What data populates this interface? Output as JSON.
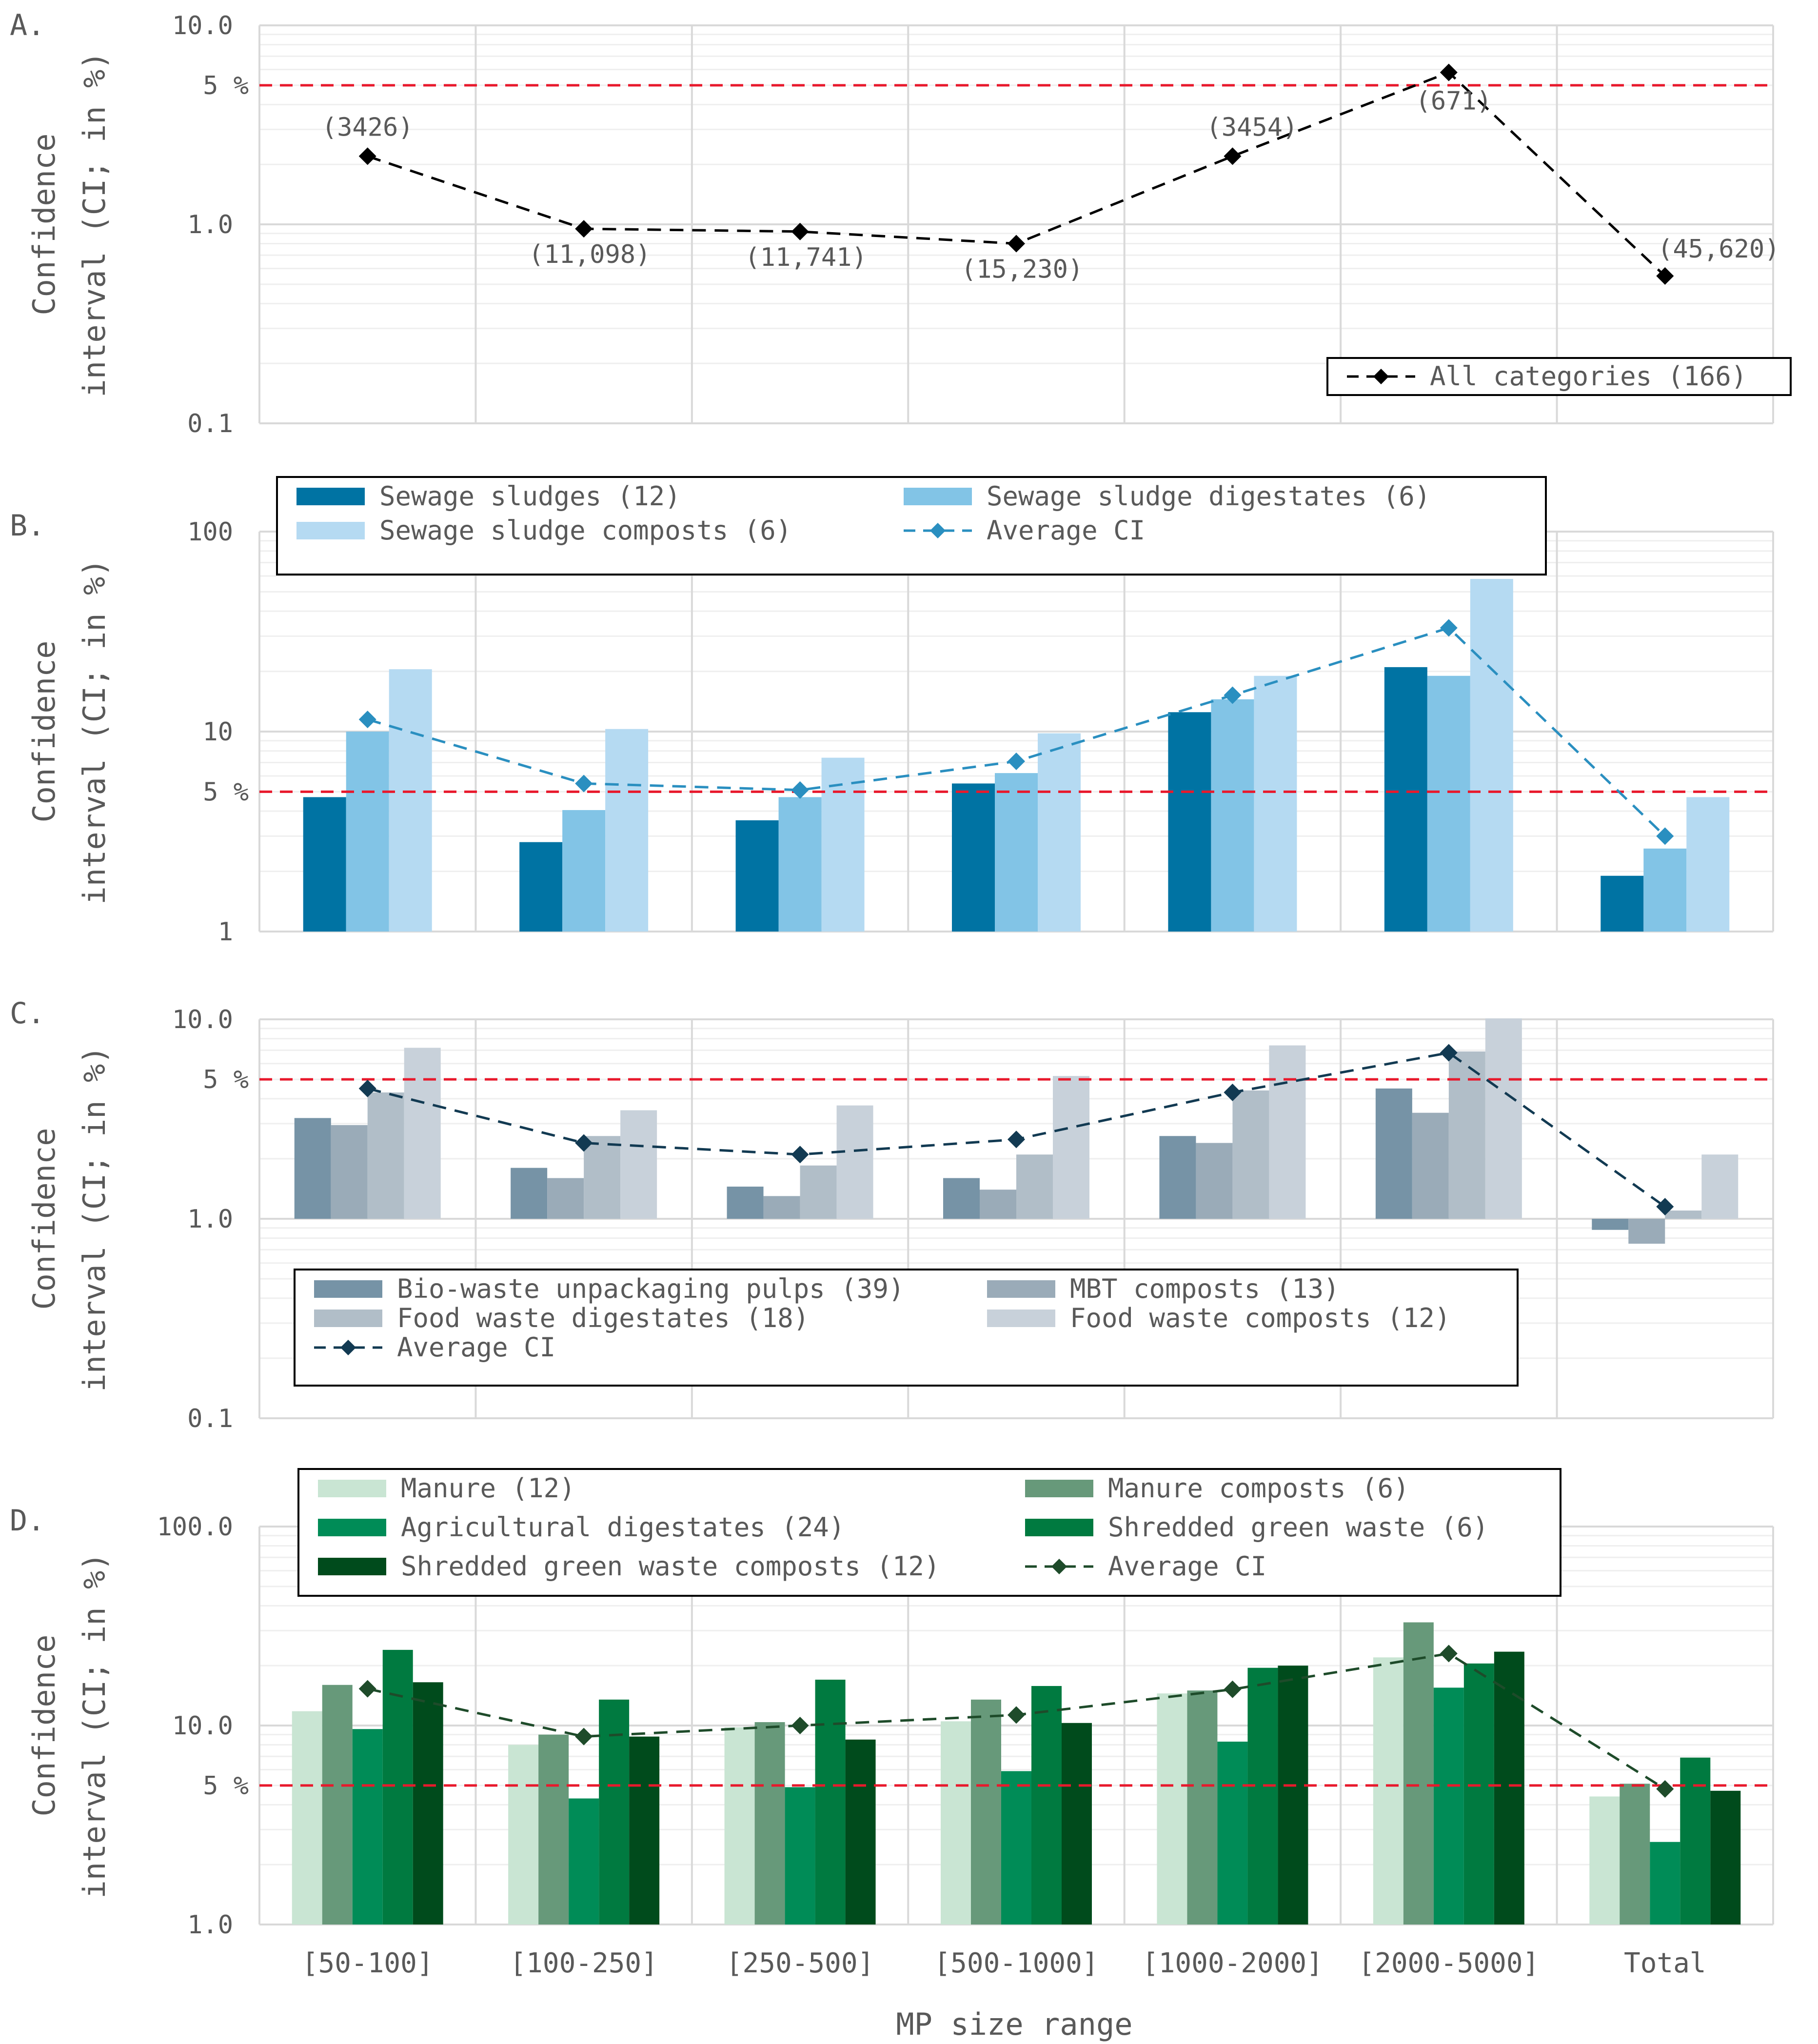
{
  "figure": {
    "xlabel": "MP size range",
    "colors": {
      "gridline": "#d9d9d9",
      "minor_gridline": "#efefef",
      "threshold": "#e8192c",
      "axis_text": "#595959",
      "legend_border": "#000000"
    }
  },
  "chart_data": [
    {
      "panel_label": "A.",
      "type": "line",
      "categories": [
        "[50-100]",
        "[100-250]",
        "[250-500]",
        "[500-1000]",
        "[1000-2000]",
        "[2000-5000]",
        "Total"
      ],
      "ylabel": "Confidence interval (CI; in %)",
      "yscale": "log",
      "ylim": [
        0.1,
        10.0
      ],
      "yticks": [
        "0.1",
        "1.0",
        "10.0"
      ],
      "threshold": {
        "value": 5,
        "label": "5 %"
      },
      "grid": true,
      "legend_position": "bottom-right",
      "series": [
        {
          "name": "All categories (166)",
          "color": "#000000",
          "values": [
            2.2,
            0.95,
            0.92,
            0.8,
            2.2,
            5.8,
            0.55
          ],
          "point_labels": [
            "(3426)",
            "(11,098)",
            "(11,741)",
            "(15,230)",
            "(3454)",
            "(671)",
            "(45,620)"
          ]
        }
      ]
    },
    {
      "panel_label": "B.",
      "type": "bar",
      "categories": [
        "[50-100]",
        "[100-250]",
        "[250-500]",
        "[500-1000]",
        "[1000-2000]",
        "[2000-5000]",
        "Total"
      ],
      "ylabel": "Confidence interval (CI; in %)",
      "yscale": "log",
      "ylim": [
        1,
        100
      ],
      "yticks": [
        "1",
        "10",
        "100"
      ],
      "threshold": {
        "value": 5,
        "label": "5 %"
      },
      "grid": true,
      "legend_position": "top",
      "series": [
        {
          "name": "Sewage sludges (12)",
          "color": "#0073a3",
          "values": [
            4.7,
            2.8,
            3.6,
            5.5,
            12.5,
            21,
            1.9
          ]
        },
        {
          "name": "Sewage sludge digestates (6)",
          "color": "#82c4e6",
          "values": [
            10,
            4.05,
            4.7,
            6.2,
            14.5,
            19,
            2.6
          ]
        },
        {
          "name": "Sewage sludge composts (6)",
          "color": "#b5daf2",
          "values": [
            20.5,
            10.3,
            7.4,
            9.8,
            19,
            58,
            4.7
          ]
        }
      ],
      "average": {
        "name": "Average CI",
        "color": "#2a8fc0",
        "values": [
          11.5,
          5.5,
          5.1,
          7.1,
          15.2,
          33,
          3.0
        ]
      }
    },
    {
      "panel_label": "C.",
      "type": "bar",
      "categories": [
        "[50-100]",
        "[100-250]",
        "[250-500]",
        "[500-1000]",
        "[1000-2000]",
        "[2000-5000]",
        "Total"
      ],
      "ylabel": "Confidence interval (CI; in %)",
      "yscale": "log",
      "ylim": [
        0.1,
        10.0
      ],
      "yticks": [
        "0.1",
        "1.0",
        "10.0"
      ],
      "threshold": {
        "value": 5,
        "label": "5 %"
      },
      "grid": true,
      "legend_position": "bottom",
      "series": [
        {
          "name": "Bio-waste unpackaging pulps (39)",
          "color": "#7693a6",
          "values": [
            3.2,
            1.8,
            1.45,
            1.6,
            2.6,
            4.5,
            0.88
          ]
        },
        {
          "name": "MBT composts (13)",
          "color": "#9aabb8",
          "values": [
            2.95,
            1.6,
            1.3,
            1.4,
            2.4,
            3.4,
            0.75
          ]
        },
        {
          "name": "Food waste digestates (18)",
          "color": "#b1bec8",
          "values": [
            4.3,
            2.6,
            1.85,
            2.1,
            4.4,
            6.9,
            1.1
          ]
        },
        {
          "name": "Food waste composts (12)",
          "color": "#c8d1da",
          "values": [
            7.2,
            3.5,
            3.7,
            5.2,
            7.4,
            10.1,
            2.1
          ]
        }
      ],
      "average": {
        "name": "Average CI",
        "color": "#123a52",
        "values": [
          4.5,
          2.4,
          2.1,
          2.5,
          4.3,
          6.8,
          1.15
        ]
      }
    },
    {
      "panel_label": "D.",
      "type": "bar",
      "categories": [
        "[50-100]",
        "[100-250]",
        "[250-500]",
        "[500-1000]",
        "[1000-2000]",
        "[2000-5000]",
        "Total"
      ],
      "ylabel": "Confidence interval (CI; in %)",
      "yscale": "log",
      "ylim": [
        1.0,
        100.0
      ],
      "yticks": [
        "1.0",
        "10.0",
        "100.0"
      ],
      "threshold": {
        "value": 5,
        "label": "5 %"
      },
      "grid": true,
      "legend_position": "top",
      "series": [
        {
          "name": "Manure (12)",
          "color": "#c9e5d3",
          "values": [
            11.8,
            8.0,
            9.8,
            10.5,
            14.5,
            22,
            4.4
          ]
        },
        {
          "name": "Manure composts (6)",
          "color": "#67997a",
          "values": [
            16,
            9.0,
            10.4,
            13.5,
            15,
            33,
            5.1
          ]
        },
        {
          "name": "Agricultural digestates (24)",
          "color": "#008c57",
          "values": [
            9.6,
            4.3,
            4.9,
            5.9,
            8.3,
            15.5,
            2.6
          ]
        },
        {
          "name": "Shredded green waste (6)",
          "color": "#007a40",
          "values": [
            24,
            13.5,
            17,
            15.8,
            19.5,
            20.5,
            6.9
          ]
        },
        {
          "name": "Shredded green waste composts (12)",
          "color": "#004b1c",
          "values": [
            16.5,
            8.8,
            8.5,
            10.3,
            20,
            23.5,
            4.7
          ]
        }
      ],
      "average": {
        "name": "Average CI",
        "color": "#1e4b2a",
        "values": [
          15.3,
          8.8,
          10,
          11.3,
          15.2,
          23,
          4.8
        ]
      }
    }
  ]
}
